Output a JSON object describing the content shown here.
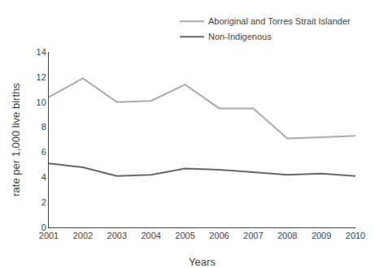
{
  "chart_data": {
    "type": "line",
    "x": [
      2001,
      2002,
      2003,
      2004,
      2005,
      2006,
      2007,
      2008,
      2009,
      2010
    ],
    "series": [
      {
        "name": "Aboriginal and Torres Strait Islander",
        "color": "#aaaaaa",
        "values": [
          10.4,
          11.9,
          10.0,
          10.1,
          11.4,
          9.5,
          9.5,
          7.1,
          7.2,
          7.3
        ]
      },
      {
        "name": "Non-Indigenous",
        "color": "#666666",
        "values": [
          5.1,
          4.8,
          4.1,
          4.2,
          4.7,
          4.6,
          4.4,
          4.2,
          4.3,
          4.1
        ]
      }
    ],
    "xlabel": "Years",
    "ylabel": "rate per 1,000 live births",
    "xlim": [
      2001,
      2010
    ],
    "xticks": [
      2001,
      2002,
      2003,
      2004,
      2005,
      2006,
      2007,
      2008,
      2009,
      2010
    ],
    "ylim": [
      0,
      14
    ],
    "yticks": [
      0,
      2,
      4,
      6,
      8,
      10,
      12,
      14
    ],
    "grid": false,
    "legend": "upper right"
  }
}
